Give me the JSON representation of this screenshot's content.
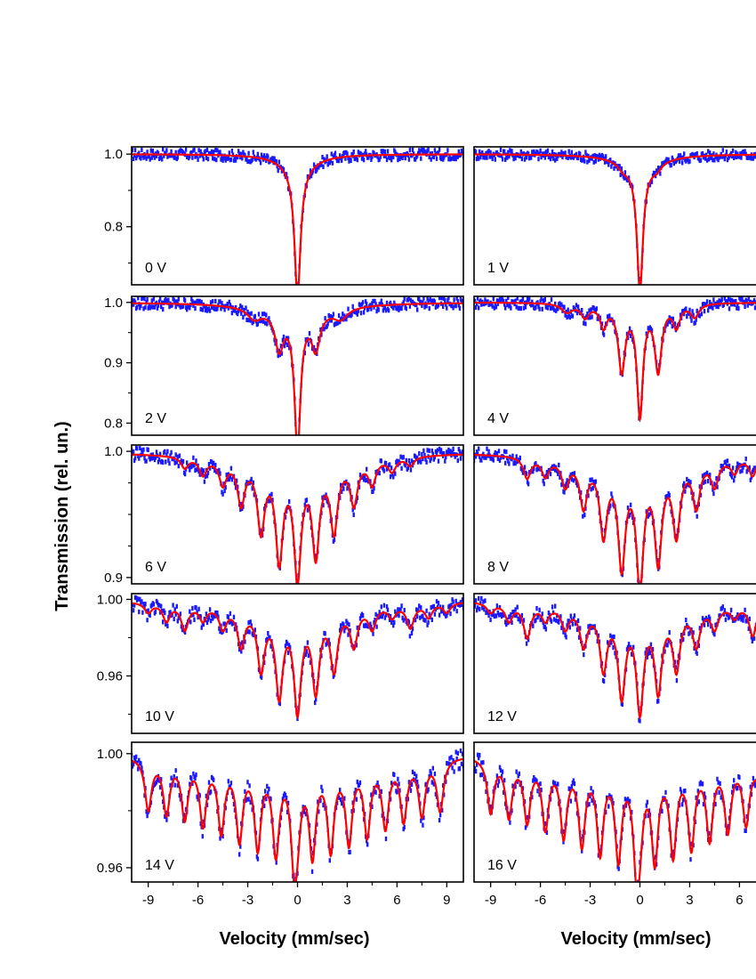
{
  "figure": {
    "ylabel": "Transmission (rel. un.)",
    "xlabel_left": "Velocity (mm/sec)",
    "xlabel_right": "Velocity (mm/sec)"
  },
  "colors": {
    "data_points": "#1a1aff",
    "fit_line": "#ff0000",
    "frame": "#000000"
  },
  "chart_data": [
    {
      "type": "line",
      "label": "0 V",
      "xlim": [
        -10,
        10
      ],
      "ylim": [
        0.64,
        1.02
      ],
      "yticks": [
        {
          "v": 1.0,
          "t": "1.0"
        },
        {
          "v": 0.8,
          "t": "0.8"
        }
      ],
      "yminor": [
        0.9,
        0.7
      ],
      "xticks": [],
      "pattern": "singlet",
      "depth": 0.35,
      "series": [
        "data",
        "fit"
      ]
    },
    {
      "type": "line",
      "label": "1 V",
      "xlim": [
        -10,
        10
      ],
      "ylim": [
        0.64,
        1.02
      ],
      "yticks": [],
      "yminor": [],
      "xticks": [],
      "pattern": "singlet-weak-sextet",
      "depth": 0.34,
      "series": [
        "data",
        "fit"
      ]
    },
    {
      "type": "line",
      "label": "2 V",
      "xlim": [
        -10,
        10
      ],
      "ylim": [
        0.78,
        1.01
      ],
      "yticks": [
        {
          "v": 1.0,
          "t": "1.0"
        },
        {
          "v": 0.9,
          "t": "0.9"
        },
        {
          "v": 0.8,
          "t": "0.8"
        }
      ],
      "yminor": [
        0.95,
        0.85
      ],
      "xticks": [],
      "pattern": "singlet-sextet",
      "depth": 0.22,
      "series": [
        "data",
        "fit"
      ]
    },
    {
      "type": "line",
      "label": "4 V",
      "xlim": [
        -10,
        10
      ],
      "ylim": [
        0.78,
        1.01
      ],
      "yticks": [],
      "yminor": [],
      "xticks": [],
      "pattern": "mixed-4",
      "depth": 0.2,
      "series": [
        "data",
        "fit"
      ]
    },
    {
      "type": "line",
      "label": "6 V",
      "xlim": [
        -10,
        10
      ],
      "ylim": [
        0.895,
        1.005
      ],
      "yticks": [
        {
          "v": 1.0,
          "t": "1.0"
        },
        {
          "v": 0.9,
          "t": "0.9"
        }
      ],
      "yminor": [
        0.975,
        0.95,
        0.925
      ],
      "xticks": [],
      "pattern": "mixed-6",
      "depth": 0.095,
      "series": [
        "data",
        "fit"
      ]
    },
    {
      "type": "line",
      "label": "8 V",
      "xlim": [
        -10,
        10
      ],
      "ylim": [
        0.895,
        1.005
      ],
      "yticks": [],
      "yminor": [],
      "xticks": [],
      "pattern": "mixed-8",
      "depth": 0.1,
      "series": [
        "data",
        "fit"
      ]
    },
    {
      "type": "line",
      "label": "10 V",
      "xlim": [
        -10,
        10
      ],
      "ylim": [
        0.93,
        1.003
      ],
      "yticks": [
        {
          "v": 1.0,
          "t": "1.00"
        },
        {
          "v": 0.96,
          "t": "0.96"
        }
      ],
      "yminor": [
        0.98,
        0.94
      ],
      "xticks": [],
      "pattern": "mixed-10",
      "depth": 0.055,
      "series": [
        "data",
        "fit"
      ]
    },
    {
      "type": "line",
      "label": "12 V",
      "xlim": [
        -10,
        10
      ],
      "ylim": [
        0.93,
        1.003
      ],
      "yticks": [],
      "yminor": [],
      "xticks": [],
      "pattern": "mixed-12",
      "depth": 0.055,
      "series": [
        "data",
        "fit"
      ]
    },
    {
      "type": "line",
      "label": "14 V",
      "xlim": [
        -10,
        10
      ],
      "ylim": [
        0.955,
        1.004
      ],
      "yticks": [
        {
          "v": 1.0,
          "t": "1.00"
        },
        {
          "v": 0.96,
          "t": "0.96"
        }
      ],
      "yminor": [
        0.98
      ],
      "xticks": [
        {
          "v": -9,
          "t": "-9"
        },
        {
          "v": -6,
          "t": "-6"
        },
        {
          "v": -3,
          "t": "-3"
        },
        {
          "v": 0,
          "t": "0"
        },
        {
          "v": 3,
          "t": "3"
        },
        {
          "v": 6,
          "t": "6"
        },
        {
          "v": 9,
          "t": "9"
        }
      ],
      "pattern": "comb-14",
      "depth": 0.04,
      "series": [
        "data",
        "fit"
      ]
    },
    {
      "type": "line",
      "label": "16 V",
      "xlim": [
        -10,
        10
      ],
      "ylim": [
        0.955,
        1.004
      ],
      "yticks": [],
      "yminor": [],
      "xticks": [
        {
          "v": -9,
          "t": "-9"
        },
        {
          "v": -6,
          "t": "-6"
        },
        {
          "v": -3,
          "t": "-3"
        },
        {
          "v": 0,
          "t": "0"
        },
        {
          "v": 3,
          "t": "3"
        },
        {
          "v": 6,
          "t": "6"
        }
      ],
      "pattern": "comb-16",
      "depth": 0.042,
      "series": [
        "data",
        "fit"
      ]
    }
  ]
}
